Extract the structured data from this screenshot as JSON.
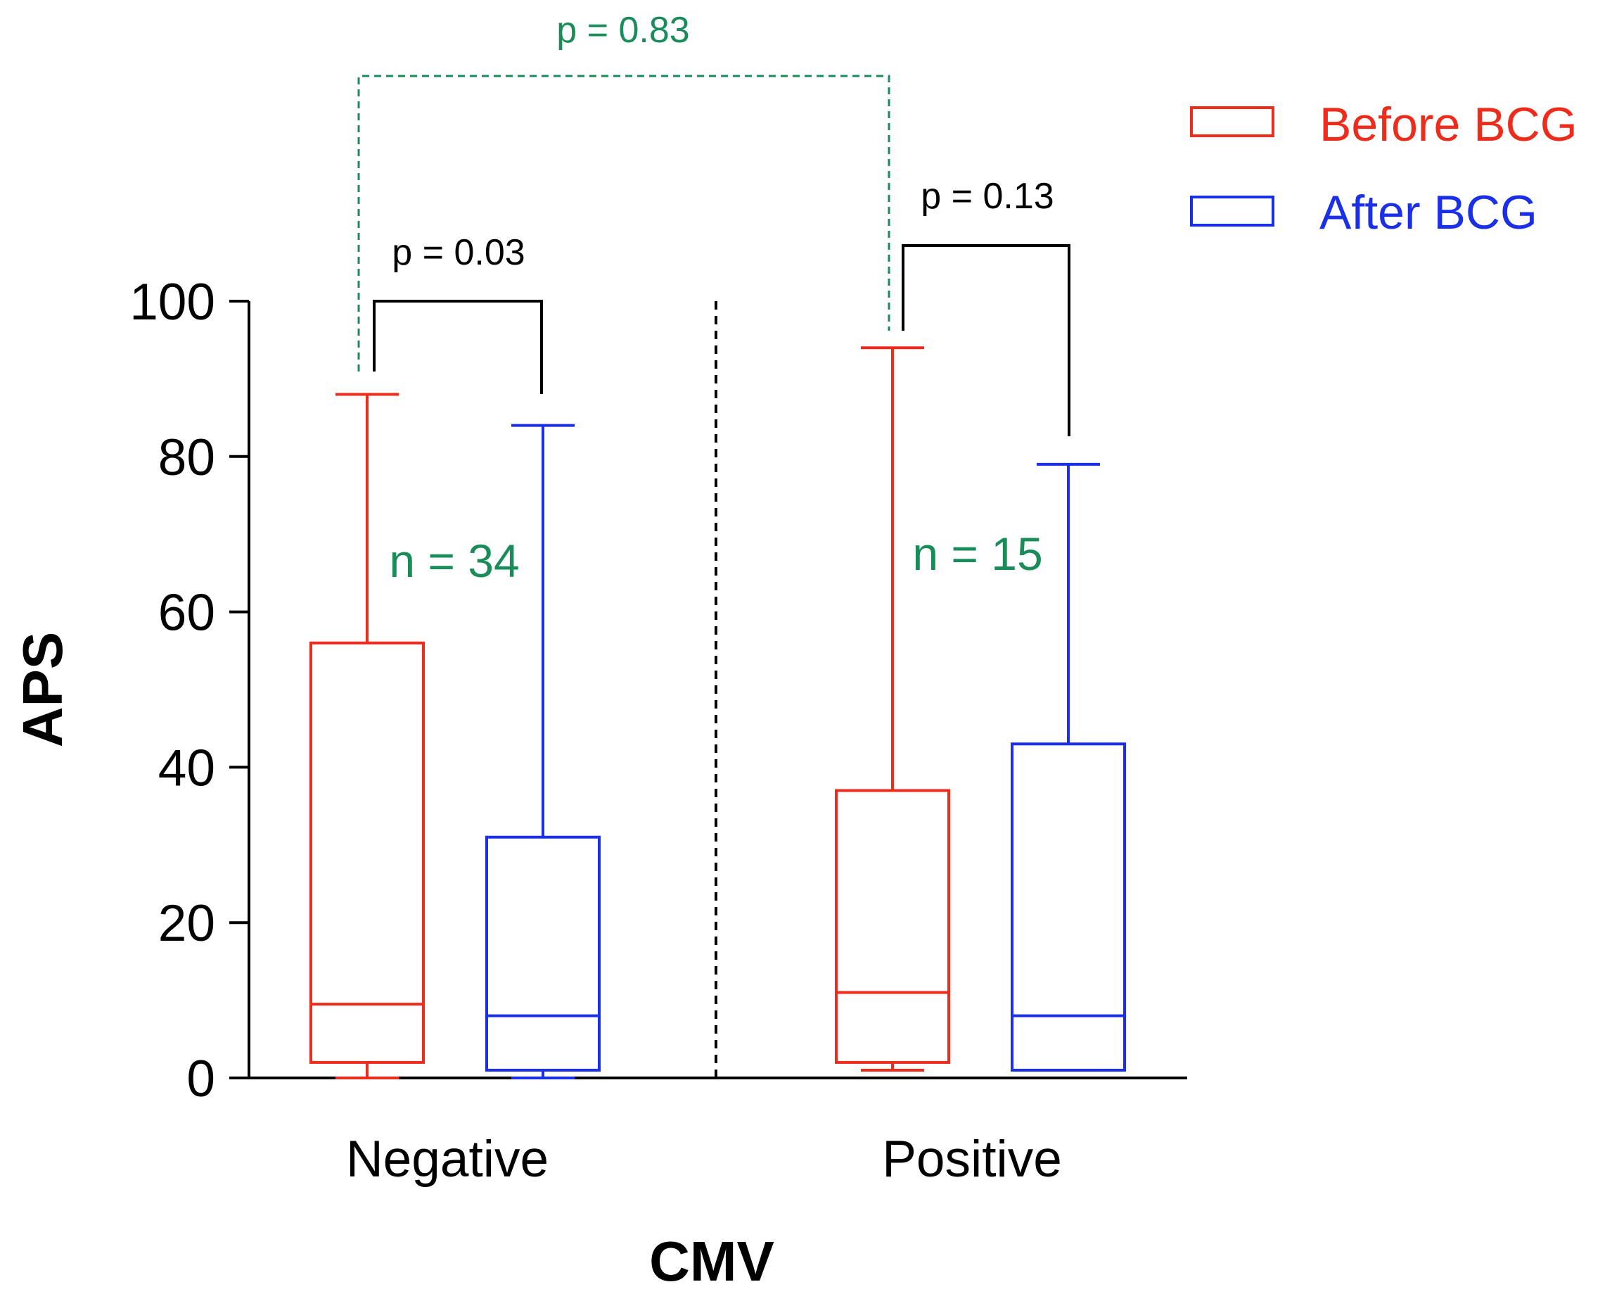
{
  "chart_data": {
    "type": "boxplot",
    "title": "",
    "xlabel": "CMV",
    "ylabel": "APS",
    "ylim": [
      0,
      100
    ],
    "yticks": [
      0,
      20,
      40,
      60,
      80,
      100
    ],
    "categories": [
      "Negative",
      "Positive"
    ],
    "series": [
      {
        "name": "Before BCG",
        "color": "#ee2c1c",
        "boxes": [
          {
            "category": "Negative",
            "min": 0,
            "q1": 2,
            "median": 9.5,
            "q3": 56,
            "max": 88
          },
          {
            "category": "Positive",
            "min": 1,
            "q1": 2,
            "median": 11,
            "q3": 37,
            "max": 94
          }
        ]
      },
      {
        "name": "After BCG",
        "color": "#1a2fe8",
        "boxes": [
          {
            "category": "Negative",
            "min": 0,
            "q1": 1,
            "median": 8,
            "q3": 31,
            "max": 84
          },
          {
            "category": "Positive",
            "min": 1,
            "q1": 1,
            "median": 8,
            "q3": 43,
            "max": 79
          }
        ]
      }
    ],
    "annotations": {
      "p_negative": "p = 0.03",
      "p_positive": "p = 0.13",
      "p_between": "p = 0.83",
      "n_negative": "n = 34",
      "n_positive": "n = 15"
    },
    "legend_position": "top-right",
    "annotation_color": "#1a8c5a"
  }
}
